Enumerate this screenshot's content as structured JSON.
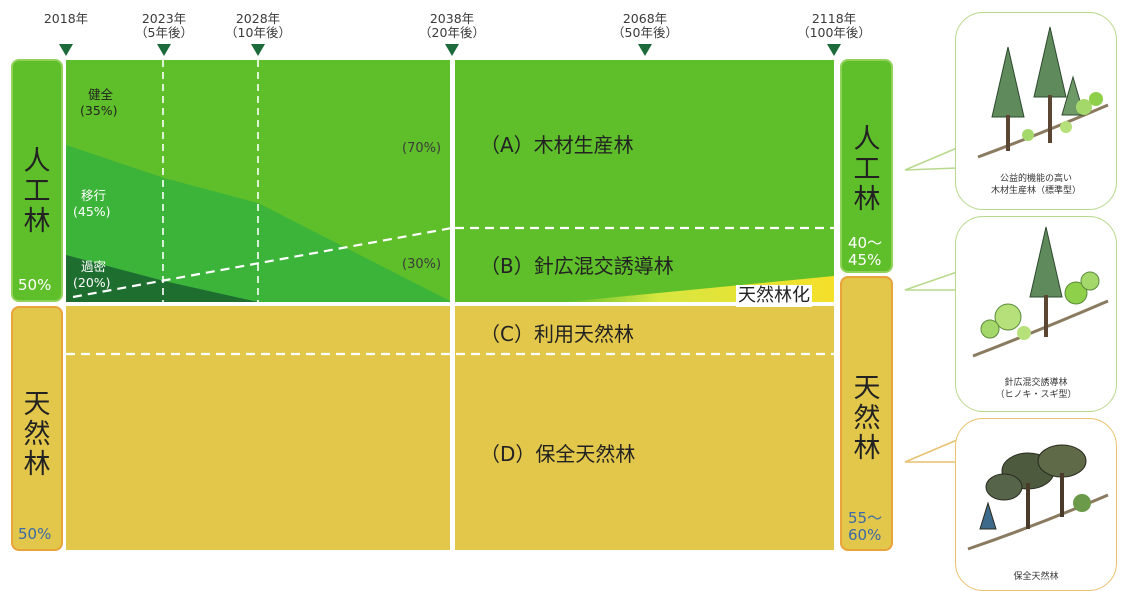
{
  "timeline": [
    {
      "year": "2018年",
      "sub": ""
    },
    {
      "year": "2023年",
      "sub": "（5年後）"
    },
    {
      "year": "2028年",
      "sub": "（10年後）"
    },
    {
      "year": "2038年",
      "sub": "（20年後）"
    },
    {
      "year": "2068年",
      "sub": "（50年後）"
    },
    {
      "year": "2118年",
      "sub": "（100年後）"
    }
  ],
  "left": {
    "plantation_label": "人工林",
    "plantation_pct": "50%",
    "natural_label": "天然林",
    "natural_pct": "50%"
  },
  "right": {
    "plantation_label": "人工林",
    "plantation_pct": "40～45%",
    "natural_label": "天然林",
    "natural_pct": "55～60%"
  },
  "stages": {
    "healthy": {
      "name": "健全",
      "pct": "(35%)"
    },
    "transition": {
      "name": "移行",
      "pct": "(45%)"
    },
    "dense": {
      "name": "過密",
      "pct": "(20%)"
    }
  },
  "percent_70": "(70%)",
  "percent_30": "(30%)",
  "zones": {
    "a": "（A）木材生産林",
    "b": "（B）針広混交誘導林",
    "c": "（C）利用天然林",
    "d": "（D）保全天然林"
  },
  "naturalization_label": "天然林化",
  "bubbles": {
    "a_caption": [
      "公益的機能の高い",
      "木材生産林（標準型）"
    ],
    "b_caption": [
      "針広混交誘導林",
      "（ヒノキ・スギ型）"
    ],
    "d_caption": [
      "保全天然林"
    ]
  },
  "colors": {
    "green_bright": "#5fbf2a",
    "green_mid": "#3cb43a",
    "green_dark": "#1e6e30",
    "tan": "#e3c74a",
    "tan_border": "#e8a33a"
  }
}
